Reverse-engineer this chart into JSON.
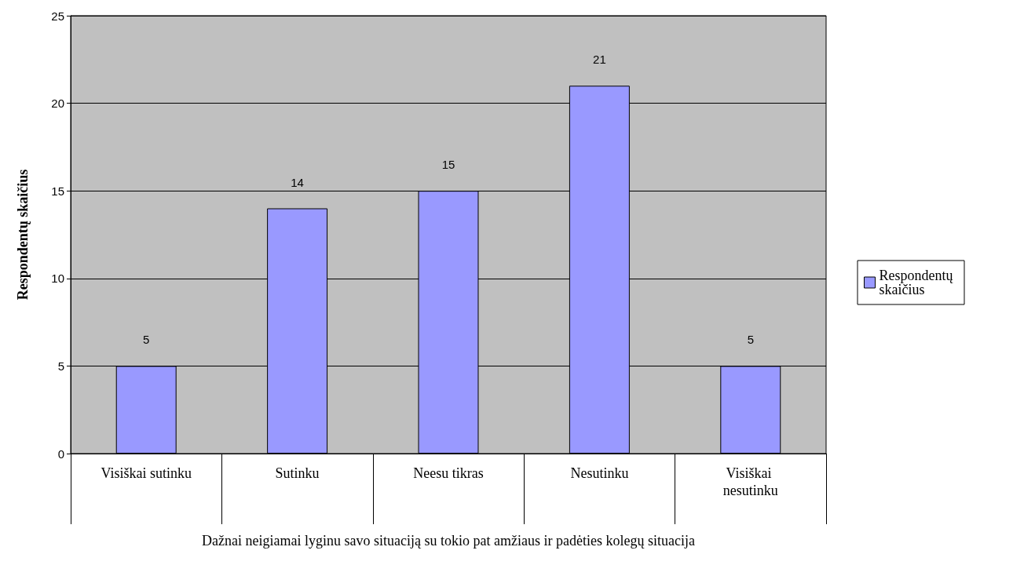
{
  "chart_data": {
    "type": "bar",
    "xlabel": "Dažnai neigiamai lyginu savo situaciją su tokio pat amžiaus ir padėties kolegų situacija",
    "ylabel": "Respondentų skaičius",
    "categories": [
      "Visiškai sutinku",
      "Sutinku",
      "Neesu tikras",
      "Nesutinku",
      "Visiškai nesutinku"
    ],
    "series": [
      {
        "name": "Respondentų skaičius",
        "color": "#9999ff",
        "values": [
          5,
          14,
          15,
          21,
          5
        ]
      }
    ],
    "ylim": [
      0,
      25
    ],
    "yticks": [
      0,
      5,
      10,
      15,
      20,
      25
    ],
    "grid": "y",
    "legend": "right",
    "data_labels": true
  }
}
